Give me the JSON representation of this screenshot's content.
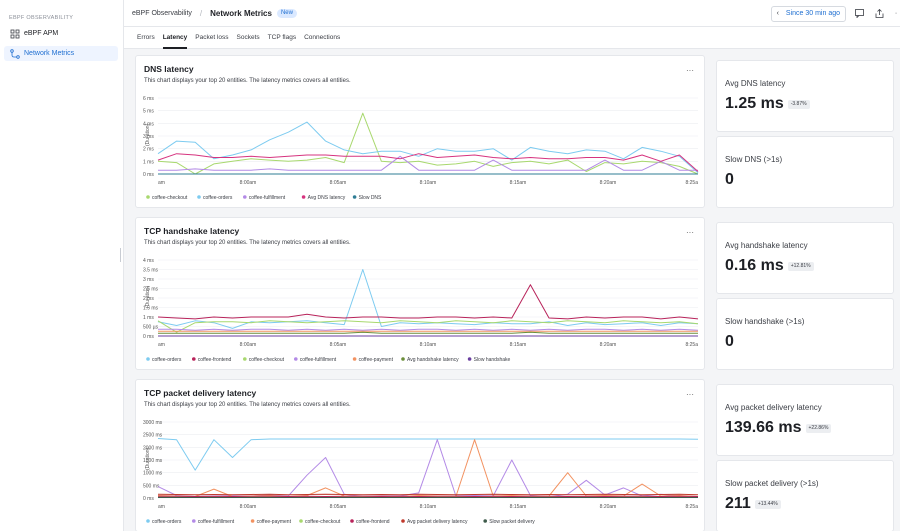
{
  "sidebar": {
    "section": "EBPF OBSERVABILITY",
    "items": [
      {
        "label": "eBPF APM"
      },
      {
        "label": "Network Metrics"
      }
    ]
  },
  "topbar": {
    "crumb": "eBPF Observability",
    "current": "Network Metrics",
    "badge": "New",
    "time_range": "Since 30 min ago"
  },
  "tabs": [
    "Errors",
    "Latency",
    "Packet loss",
    "Sockets",
    "TCP flags",
    "Connections"
  ],
  "active_tab": "Latency",
  "subtitle": "This chart displays your top 20 entities. The latency metrics covers all entities.",
  "menu_glyph": "···",
  "ylabel": "(Duration)",
  "x_ticks": [
    "am",
    "8:00am",
    "8:05am",
    "8:10am",
    "8:15am",
    "8:20am",
    "8:25a"
  ],
  "colors": {
    "coffee-checkout": "#a8d86e",
    "coffee-orders": "#7dcbf0",
    "coffee-fulfillment": "#b38ae6",
    "Avg DNS latency": "#d6337f",
    "Slow DNS": "#2f7d95",
    "coffee-frontend": "#b8235a",
    "Avg handshake latency": "#6b8e3a",
    "Slow handshake": "#6a3fa0",
    "coffee-payment": "#f29261",
    "Avg packet delivery latency": "#c0392b",
    "Slow packet delivery": "#3d5a4a"
  },
  "panels": [
    {
      "title": "DNS latency",
      "y_ticks": [
        "6 ms",
        "5 ms",
        "4 ms",
        "3 ms",
        "2 ms",
        "1 ms",
        "0 ms"
      ],
      "legend": [
        "coffee-checkout",
        "coffee-orders",
        "coffee-fulfillment",
        "Avg DNS latency",
        "Slow DNS"
      ]
    },
    {
      "title": "TCP handshake latency",
      "y_ticks": [
        "4 ms",
        "3.5 ms",
        "3 ms",
        "2.5 ms",
        "2 ms",
        "1.5 ms",
        "1 ms",
        "500 µs",
        "0 ms"
      ],
      "legend": [
        "coffee-orders",
        "coffee-frontend",
        "coffee-checkout",
        "coffee-fulfillment",
        "coffee-payment",
        "Avg handshake latency",
        "Slow handshake"
      ]
    },
    {
      "title": "TCP packet delivery latency",
      "y_ticks": [
        "3000 ms",
        "2500 ms",
        "2000 ms",
        "1500 ms",
        "1000 ms",
        "500 ms",
        "0 ms"
      ],
      "legend": [
        "coffee-orders",
        "coffee-fulfillment",
        "coffee-payment",
        "coffee-checkout",
        "coffee-frontend",
        "Avg packet delivery latency",
        "Slow packet delivery"
      ]
    }
  ],
  "stats": [
    {
      "label": "Avg DNS latency",
      "value": "1.25 ms",
      "delta": "-3.87%"
    },
    {
      "label": "Slow DNS (>1s)",
      "value": "0",
      "delta": ""
    },
    {
      "label": "Avg handshake latency",
      "value": "0.16 ms",
      "delta": "+12.81%"
    },
    {
      "label": "Slow handshake (>1s)",
      "value": "0",
      "delta": ""
    },
    {
      "label": "Avg packet delivery latency",
      "value": "139.66 ms",
      "delta": "+22.86%"
    },
    {
      "label": "Slow packet delivery (>1s)",
      "value": "211",
      "delta": "+13.44%"
    }
  ],
  "chart_data": [
    {
      "type": "line",
      "title": "DNS latency",
      "ylabel": "(Duration)",
      "ylim": [
        0,
        6
      ],
      "y_unit": "ms",
      "x": [
        "7:56",
        "7:57",
        "7:58",
        "7:59",
        "8:00",
        "8:01",
        "8:02",
        "8:03",
        "8:04",
        "8:05",
        "8:06",
        "8:07",
        "8:08",
        "8:09",
        "8:10",
        "8:11",
        "8:12",
        "8:13",
        "8:14",
        "8:15",
        "8:16",
        "8:17",
        "8:18",
        "8:19",
        "8:20",
        "8:21",
        "8:22",
        "8:23",
        "8:24",
        "8:25"
      ],
      "series": [
        {
          "name": "coffee-checkout",
          "values": [
            1.0,
            0.9,
            0.0,
            0.8,
            1.0,
            1.2,
            1.1,
            1.0,
            1.1,
            1.3,
            0.9,
            4.8,
            1.0,
            0.9,
            1.0,
            0.7,
            0.8,
            1.0,
            0.6,
            0.9,
            1.0,
            0.8,
            1.1,
            0.2,
            0.9,
            0.8,
            1.0,
            0.9,
            0.6,
            0.0
          ]
        },
        {
          "name": "coffee-orders",
          "values": [
            1.6,
            2.6,
            2.5,
            1.2,
            1.5,
            1.9,
            2.7,
            3.3,
            4.1,
            2.6,
            1.9,
            1.6,
            1.8,
            1.8,
            1.4,
            2.0,
            1.8,
            1.8,
            2.0,
            1.1,
            2.1,
            1.8,
            1.6,
            1.9,
            1.8,
            1.2,
            2.1,
            1.8,
            1.4,
            0.1
          ]
        },
        {
          "name": "coffee-fulfillment",
          "values": [
            0.3,
            0.3,
            0.4,
            0.3,
            0.3,
            0.3,
            0.4,
            0.3,
            0.3,
            0.3,
            0.3,
            0.3,
            0.3,
            1.4,
            0.3,
            0.3,
            0.3,
            0.3,
            1.1,
            0.3,
            0.3,
            0.3,
            0.3,
            0.3,
            1.1,
            0.3,
            0.3,
            1.0,
            0.3,
            0.3
          ]
        },
        {
          "name": "Avg DNS latency",
          "values": [
            1.1,
            1.6,
            1.5,
            1.3,
            1.3,
            1.4,
            1.3,
            1.4,
            1.5,
            1.5,
            1.4,
            1.4,
            1.4,
            1.2,
            1.6,
            1.3,
            1.4,
            1.5,
            1.3,
            1.2,
            1.3,
            1.2,
            1.2,
            1.3,
            1.3,
            1.1,
            1.5,
            1.0,
            1.5,
            0.2
          ]
        },
        {
          "name": "Slow DNS",
          "values": [
            0,
            0,
            0,
            0,
            0,
            0,
            0,
            0,
            0,
            0,
            0,
            0,
            0,
            0,
            0,
            0,
            0,
            0,
            0,
            0,
            0,
            0,
            0,
            0,
            0,
            0,
            0,
            0,
            0,
            0
          ]
        }
      ]
    },
    {
      "type": "line",
      "title": "TCP handshake latency",
      "ylabel": "(Duration)",
      "ylim": [
        0,
        4
      ],
      "y_unit": "ms",
      "x": [
        "7:56",
        "7:57",
        "7:58",
        "7:59",
        "8:00",
        "8:01",
        "8:02",
        "8:03",
        "8:04",
        "8:05",
        "8:06",
        "8:07",
        "8:08",
        "8:09",
        "8:10",
        "8:11",
        "8:12",
        "8:13",
        "8:14",
        "8:15",
        "8:16",
        "8:17",
        "8:18",
        "8:19",
        "8:20",
        "8:21",
        "8:22",
        "8:23",
        "8:24",
        "8:25"
      ],
      "series": [
        {
          "name": "coffee-orders",
          "values": [
            0.75,
            0.55,
            0.8,
            0.7,
            0.4,
            0.75,
            0.7,
            0.75,
            0.8,
            0.7,
            0.6,
            3.5,
            0.5,
            0.7,
            0.65,
            0.7,
            0.65,
            0.6,
            0.7,
            0.65,
            0.65,
            0.75,
            0.55,
            0.7,
            0.6,
            0.65,
            0.7,
            0.55,
            0.7,
            0.65
          ]
        },
        {
          "name": "coffee-frontend",
          "values": [
            1.0,
            0.95,
            0.9,
            1.0,
            0.95,
            1.0,
            1.0,
            1.0,
            1.15,
            1.0,
            0.95,
            1.0,
            1.0,
            0.95,
            0.95,
            1.0,
            1.0,
            0.95,
            1.0,
            0.95,
            2.7,
            0.95,
            0.9,
            1.0,
            0.95,
            1.0,
            1.0,
            0.9,
            1.0,
            0.9
          ]
        },
        {
          "name": "coffee-checkout",
          "values": [
            0.8,
            0.2,
            0.7,
            0.75,
            0.75,
            0.7,
            0.8,
            0.75,
            0.7,
            0.75,
            0.8,
            0.75,
            0.7,
            0.8,
            0.75,
            0.7,
            0.8,
            0.75,
            0.7,
            0.8,
            0.75,
            0.7,
            0.8,
            0.75,
            0.7,
            0.8,
            0.75,
            0.7,
            0.75,
            0.65
          ]
        },
        {
          "name": "coffee-fulfillment",
          "values": [
            0.35,
            0.35,
            0.3,
            0.35,
            0.3,
            0.35,
            0.35,
            0.3,
            0.35,
            0.3,
            0.35,
            0.3,
            0.35,
            0.3,
            0.35,
            0.35,
            0.3,
            0.35,
            0.3,
            0.35,
            0.3,
            0.35,
            0.3,
            0.35,
            0.35,
            0.3,
            0.35,
            0.3,
            0.35,
            0.3
          ]
        },
        {
          "name": "coffee-payment",
          "values": [
            0.25,
            0.25,
            0.25,
            0.25,
            0.25,
            0.25,
            0.25,
            0.25,
            0.25,
            0.25,
            0.25,
            0.25,
            0.25,
            0.25,
            0.25,
            0.25,
            0.25,
            0.25,
            0.25,
            0.25,
            0.25,
            0.25,
            0.25,
            0.25,
            0.25,
            0.25,
            0.25,
            0.25,
            0.25,
            0.25
          ]
        },
        {
          "name": "Avg handshake latency",
          "values": [
            0.15,
            0.15,
            0.15,
            0.15,
            0.15,
            0.15,
            0.15,
            0.15,
            0.15,
            0.15,
            0.15,
            0.2,
            0.15,
            0.15,
            0.15,
            0.15,
            0.15,
            0.15,
            0.15,
            0.15,
            0.2,
            0.15,
            0.15,
            0.15,
            0.15,
            0.15,
            0.15,
            0.15,
            0.15,
            0.15
          ]
        },
        {
          "name": "Slow handshake",
          "values": [
            0,
            0,
            0,
            0,
            0,
            0,
            0,
            0,
            0,
            0,
            0,
            0,
            0,
            0,
            0,
            0,
            0,
            0,
            0,
            0,
            0,
            0,
            0,
            0,
            0,
            0,
            0,
            0,
            0,
            0
          ]
        }
      ]
    },
    {
      "type": "line",
      "title": "TCP packet delivery latency",
      "ylabel": "(Duration)",
      "ylim": [
        0,
        3000
      ],
      "y_unit": "ms",
      "x": [
        "7:56",
        "7:57",
        "7:58",
        "7:59",
        "8:00",
        "8:01",
        "8:02",
        "8:03",
        "8:04",
        "8:05",
        "8:06",
        "8:07",
        "8:08",
        "8:09",
        "8:10",
        "8:11",
        "8:12",
        "8:13",
        "8:14",
        "8:15",
        "8:16",
        "8:17",
        "8:18",
        "8:19",
        "8:20",
        "8:21",
        "8:22",
        "8:23",
        "8:24",
        "8:25"
      ],
      "series": [
        {
          "name": "coffee-orders",
          "values": [
            2350,
            2300,
            1100,
            2300,
            1600,
            2300,
            2330,
            2330,
            2330,
            2330,
            2330,
            2330,
            2330,
            2330,
            2330,
            2330,
            2330,
            2330,
            2330,
            2330,
            2330,
            2330,
            2330,
            2330,
            2330,
            2330,
            2330,
            2330,
            2330,
            2320
          ]
        },
        {
          "name": "coffee-fulfillment",
          "values": [
            450,
            100,
            60,
            80,
            90,
            70,
            120,
            80,
            900,
            1600,
            150,
            60,
            100,
            80,
            200,
            2300,
            80,
            100,
            80,
            1500,
            100,
            50,
            150,
            700,
            120,
            400,
            80,
            150,
            80,
            60
          ]
        },
        {
          "name": "coffee-payment",
          "values": [
            100,
            80,
            60,
            350,
            60,
            80,
            100,
            60,
            100,
            400,
            80,
            60,
            80,
            60,
            100,
            80,
            60,
            2300,
            80,
            100,
            60,
            80,
            1000,
            80,
            100,
            80,
            550,
            80,
            100,
            60
          ]
        },
        {
          "name": "coffee-checkout",
          "values": [
            60,
            50,
            40,
            50,
            40,
            50,
            60,
            50,
            40,
            60,
            50,
            40,
            50,
            60,
            50,
            40,
            50,
            60,
            50,
            40,
            50,
            60,
            50,
            40,
            50,
            60,
            50,
            40,
            50,
            40
          ]
        },
        {
          "name": "coffee-frontend",
          "values": [
            70,
            70,
            60,
            70,
            60,
            70,
            70,
            60,
            70,
            60,
            70,
            70,
            60,
            70,
            60,
            70,
            70,
            60,
            70,
            60,
            70,
            70,
            60,
            70,
            60,
            70,
            70,
            60,
            70,
            60
          ]
        },
        {
          "name": "Avg packet delivery latency",
          "values": [
            150,
            140,
            130,
            140,
            130,
            140,
            150,
            130,
            140,
            150,
            140,
            130,
            140,
            130,
            150,
            140,
            130,
            140,
            150,
            140,
            130,
            140,
            130,
            140,
            150,
            140,
            130,
            140,
            150,
            130
          ]
        },
        {
          "name": "Slow packet delivery",
          "values": [
            20,
            20,
            20,
            20,
            20,
            20,
            20,
            20,
            20,
            20,
            20,
            20,
            20,
            20,
            20,
            20,
            20,
            20,
            20,
            20,
            20,
            20,
            20,
            20,
            20,
            20,
            20,
            20,
            20,
            20
          ]
        }
      ]
    }
  ]
}
